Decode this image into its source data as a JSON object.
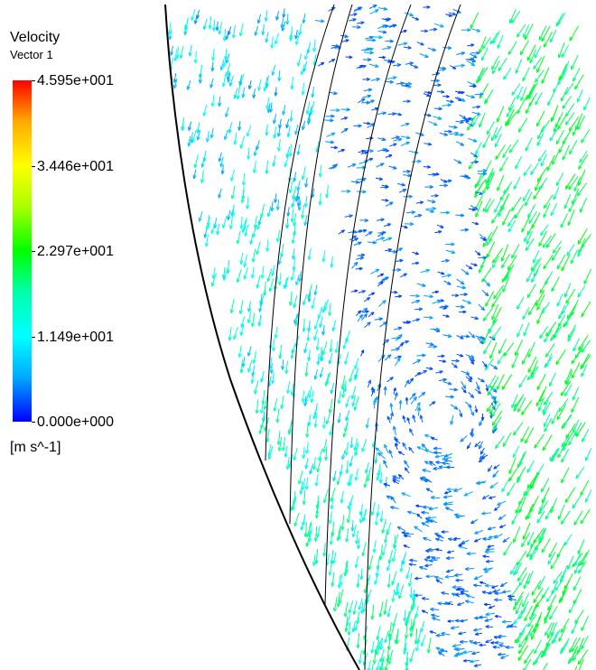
{
  "legend": {
    "title": "Velocity",
    "subtitle": "Vector 1",
    "ticks": [
      "4.595e+001",
      "3.446e+001",
      "2.297e+001",
      "1.149e+001",
      "0.000e+000"
    ],
    "unit": "[m s^-1]",
    "colors": [
      "#ff0000",
      "#ffff00",
      "#00ff00",
      "#00ffff",
      "#0000ff"
    ]
  }
}
